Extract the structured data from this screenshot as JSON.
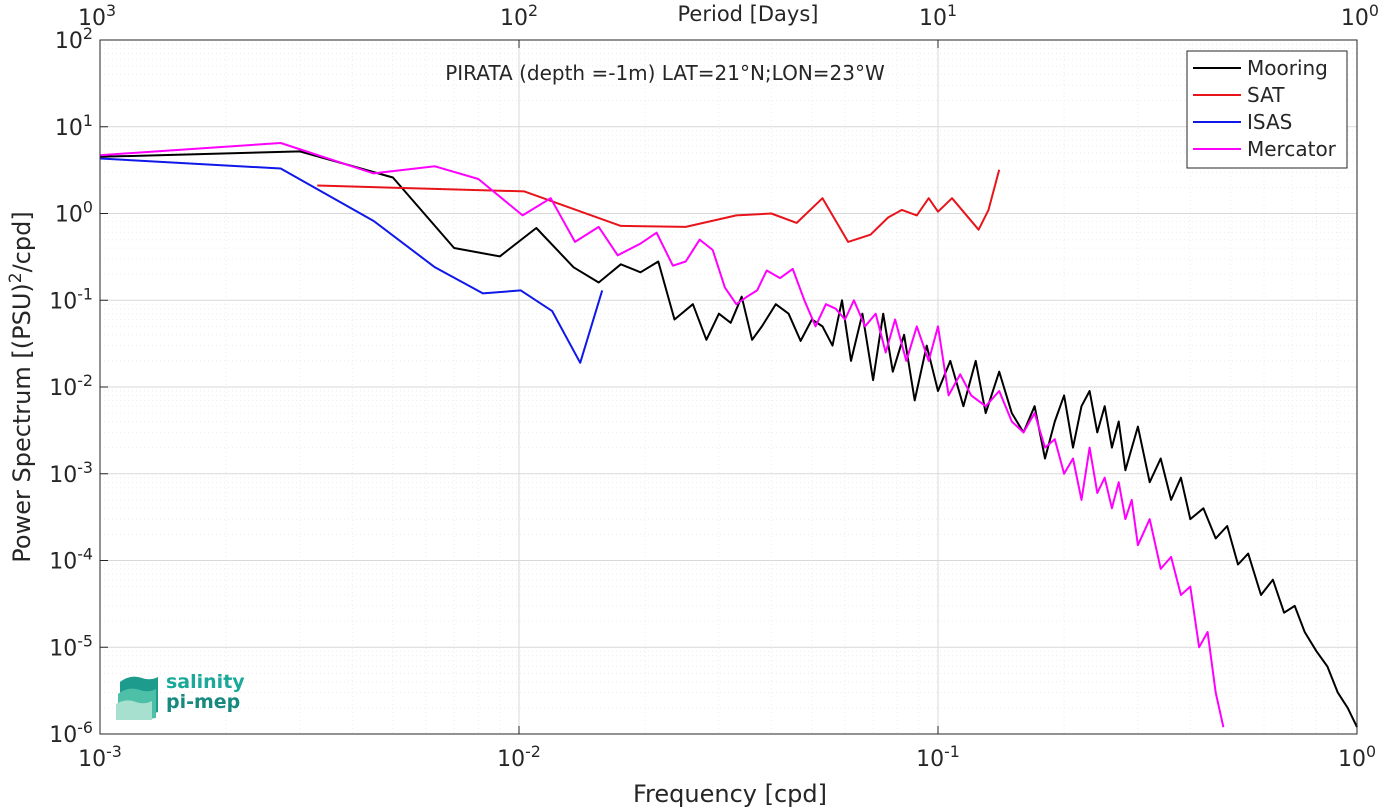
{
  "chart_data": {
    "type": "line",
    "title": "PIRATA (depth =-1m) LAT=21°N;LON=23°W",
    "xlabel": "Frequency [cpd]",
    "ylabel": "Power Spectrum [(PSU)²/cpd]",
    "top_xlabel": "Period [Days]",
    "x_scale": "log",
    "y_scale": "log",
    "xlim": [
      0.001,
      1
    ],
    "ylim": [
      1e-06,
      100
    ],
    "x_ticks": [
      {
        "base": "10",
        "exp": "-3"
      },
      {
        "base": "10",
        "exp": "-2"
      },
      {
        "base": "10",
        "exp": "-1"
      },
      {
        "base": "10",
        "exp": "0"
      }
    ],
    "top_ticks": [
      {
        "base": "10",
        "exp": "3"
      },
      {
        "base": "10",
        "exp": "2"
      },
      {
        "base": "10",
        "exp": "1"
      },
      {
        "base": "10",
        "exp": "0"
      }
    ],
    "y_ticks": [
      {
        "base": "10",
        "exp": "-6"
      },
      {
        "base": "10",
        "exp": "-5"
      },
      {
        "base": "10",
        "exp": "-4"
      },
      {
        "base": "10",
        "exp": "-3"
      },
      {
        "base": "10",
        "exp": "-2"
      },
      {
        "base": "10",
        "exp": "-1"
      },
      {
        "base": "10",
        "exp": "0"
      },
      {
        "base": "10",
        "exp": "1"
      },
      {
        "base": "10",
        "exp": "2"
      }
    ],
    "grid": true,
    "legend_position": "top-right",
    "series": [
      {
        "name": "Mooring",
        "color": "#000000",
        "points": [
          [
            0.001,
            4.5
          ],
          [
            0.003,
            5.2
          ],
          [
            0.005,
            2.6
          ],
          [
            0.007,
            0.4
          ],
          [
            0.009,
            0.32
          ],
          [
            0.011,
            0.68
          ],
          [
            0.0135,
            0.24
          ],
          [
            0.0155,
            0.16
          ],
          [
            0.0175,
            0.26
          ],
          [
            0.0195,
            0.21
          ],
          [
            0.0215,
            0.28
          ],
          [
            0.0235,
            0.06
          ],
          [
            0.026,
            0.09
          ],
          [
            0.028,
            0.035
          ],
          [
            0.03,
            0.07
          ],
          [
            0.032,
            0.055
          ],
          [
            0.034,
            0.11
          ],
          [
            0.036,
            0.035
          ],
          [
            0.038,
            0.05
          ],
          [
            0.041,
            0.09
          ],
          [
            0.044,
            0.07
          ],
          [
            0.047,
            0.034
          ],
          [
            0.05,
            0.06
          ],
          [
            0.053,
            0.05
          ],
          [
            0.056,
            0.03
          ],
          [
            0.059,
            0.1
          ],
          [
            0.062,
            0.02
          ],
          [
            0.066,
            0.07
          ],
          [
            0.07,
            0.012
          ],
          [
            0.074,
            0.07
          ],
          [
            0.078,
            0.015
          ],
          [
            0.083,
            0.04
          ],
          [
            0.088,
            0.007
          ],
          [
            0.094,
            0.03
          ],
          [
            0.1,
            0.009
          ],
          [
            0.107,
            0.02
          ],
          [
            0.115,
            0.006
          ],
          [
            0.123,
            0.02
          ],
          [
            0.13,
            0.005
          ],
          [
            0.14,
            0.015
          ],
          [
            0.15,
            0.005
          ],
          [
            0.16,
            0.003
          ],
          [
            0.17,
            0.006
          ],
          [
            0.18,
            0.0015
          ],
          [
            0.19,
            0.004
          ],
          [
            0.2,
            0.008
          ],
          [
            0.21,
            0.002
          ],
          [
            0.22,
            0.006
          ],
          [
            0.23,
            0.009
          ],
          [
            0.24,
            0.003
          ],
          [
            0.25,
            0.006
          ],
          [
            0.26,
            0.002
          ],
          [
            0.27,
            0.004
          ],
          [
            0.28,
            0.0011
          ],
          [
            0.3,
            0.0035
          ],
          [
            0.32,
            0.0008
          ],
          [
            0.34,
            0.0015
          ],
          [
            0.36,
            0.0005
          ],
          [
            0.38,
            0.0009
          ],
          [
            0.4,
            0.0003
          ],
          [
            0.43,
            0.0004
          ],
          [
            0.46,
            0.00018
          ],
          [
            0.49,
            0.00025
          ],
          [
            0.52,
            9e-05
          ],
          [
            0.55,
            0.00012
          ],
          [
            0.59,
            4e-05
          ],
          [
            0.63,
            6e-05
          ],
          [
            0.67,
            2.5e-05
          ],
          [
            0.71,
            3e-05
          ],
          [
            0.75,
            1.5e-05
          ],
          [
            0.8,
            9e-06
          ],
          [
            0.85,
            6e-06
          ],
          [
            0.9,
            3e-06
          ],
          [
            0.95,
            2e-06
          ],
          [
            1.0,
            1.2e-06
          ]
        ]
      },
      {
        "name": "SAT",
        "color": "#e8141b",
        "points": [
          [
            0.0033,
            2.1
          ],
          [
            0.0103,
            1.8
          ],
          [
            0.0175,
            0.72
          ],
          [
            0.025,
            0.7
          ],
          [
            0.033,
            0.95
          ],
          [
            0.04,
            1.0
          ],
          [
            0.046,
            0.78
          ],
          [
            0.053,
            1.5
          ],
          [
            0.061,
            0.47
          ],
          [
            0.069,
            0.57
          ],
          [
            0.076,
            0.9
          ],
          [
            0.082,
            1.1
          ],
          [
            0.089,
            0.95
          ],
          [
            0.095,
            1.5
          ],
          [
            0.1,
            1.05
          ],
          [
            0.108,
            1.5
          ],
          [
            0.115,
            1.05
          ],
          [
            0.125,
            0.65
          ],
          [
            0.132,
            1.1
          ],
          [
            0.14,
            3.2
          ]
        ]
      },
      {
        "name": "ISAS",
        "color": "#0f18e8",
        "points": [
          [
            0.001,
            4.3
          ],
          [
            0.0027,
            3.3
          ],
          [
            0.0045,
            0.82
          ],
          [
            0.0063,
            0.24
          ],
          [
            0.0082,
            0.12
          ],
          [
            0.0101,
            0.13
          ],
          [
            0.012,
            0.075
          ],
          [
            0.014,
            0.019
          ],
          [
            0.0158,
            0.13
          ]
        ]
      },
      {
        "name": "Mercator",
        "color": "#ff00ff",
        "points": [
          [
            0.001,
            4.7
          ],
          [
            0.0027,
            6.5
          ],
          [
            0.0045,
            2.9
          ],
          [
            0.0063,
            3.5
          ],
          [
            0.008,
            2.5
          ],
          [
            0.0102,
            0.95
          ],
          [
            0.0119,
            1.5
          ],
          [
            0.0136,
            0.47
          ],
          [
            0.0155,
            0.7
          ],
          [
            0.0172,
            0.33
          ],
          [
            0.0195,
            0.45
          ],
          [
            0.0213,
            0.6
          ],
          [
            0.0233,
            0.25
          ],
          [
            0.025,
            0.28
          ],
          [
            0.027,
            0.5
          ],
          [
            0.029,
            0.38
          ],
          [
            0.031,
            0.14
          ],
          [
            0.033,
            0.09
          ],
          [
            0.035,
            0.11
          ],
          [
            0.037,
            0.13
          ],
          [
            0.039,
            0.22
          ],
          [
            0.042,
            0.18
          ],
          [
            0.045,
            0.23
          ],
          [
            0.048,
            0.1
          ],
          [
            0.051,
            0.05
          ],
          [
            0.054,
            0.09
          ],
          [
            0.057,
            0.08
          ],
          [
            0.06,
            0.06
          ],
          [
            0.063,
            0.1
          ],
          [
            0.067,
            0.05
          ],
          [
            0.071,
            0.07
          ],
          [
            0.075,
            0.025
          ],
          [
            0.079,
            0.06
          ],
          [
            0.084,
            0.02
          ],
          [
            0.089,
            0.05
          ],
          [
            0.095,
            0.02
          ],
          [
            0.1,
            0.05
          ],
          [
            0.106,
            0.008
          ],
          [
            0.113,
            0.014
          ],
          [
            0.12,
            0.008
          ],
          [
            0.13,
            0.006
          ],
          [
            0.14,
            0.009
          ],
          [
            0.15,
            0.004
          ],
          [
            0.16,
            0.003
          ],
          [
            0.17,
            0.005
          ],
          [
            0.18,
            0.002
          ],
          [
            0.19,
            0.0025
          ],
          [
            0.2,
            0.001
          ],
          [
            0.21,
            0.0015
          ],
          [
            0.22,
            0.0005
          ],
          [
            0.23,
            0.002
          ],
          [
            0.24,
            0.0006
          ],
          [
            0.25,
            0.0009
          ],
          [
            0.26,
            0.0004
          ],
          [
            0.27,
            0.0008
          ],
          [
            0.28,
            0.0003
          ],
          [
            0.29,
            0.0005
          ],
          [
            0.3,
            0.00015
          ],
          [
            0.32,
            0.0003
          ],
          [
            0.34,
            8e-05
          ],
          [
            0.36,
            0.00011
          ],
          [
            0.38,
            4e-05
          ],
          [
            0.4,
            5e-05
          ],
          [
            0.42,
            1e-05
          ],
          [
            0.44,
            1.5e-05
          ],
          [
            0.46,
            3e-06
          ],
          [
            0.48,
            1.2e-06
          ]
        ]
      }
    ]
  },
  "logo": {
    "line1": "salinity",
    "line2": "pi-mep"
  }
}
